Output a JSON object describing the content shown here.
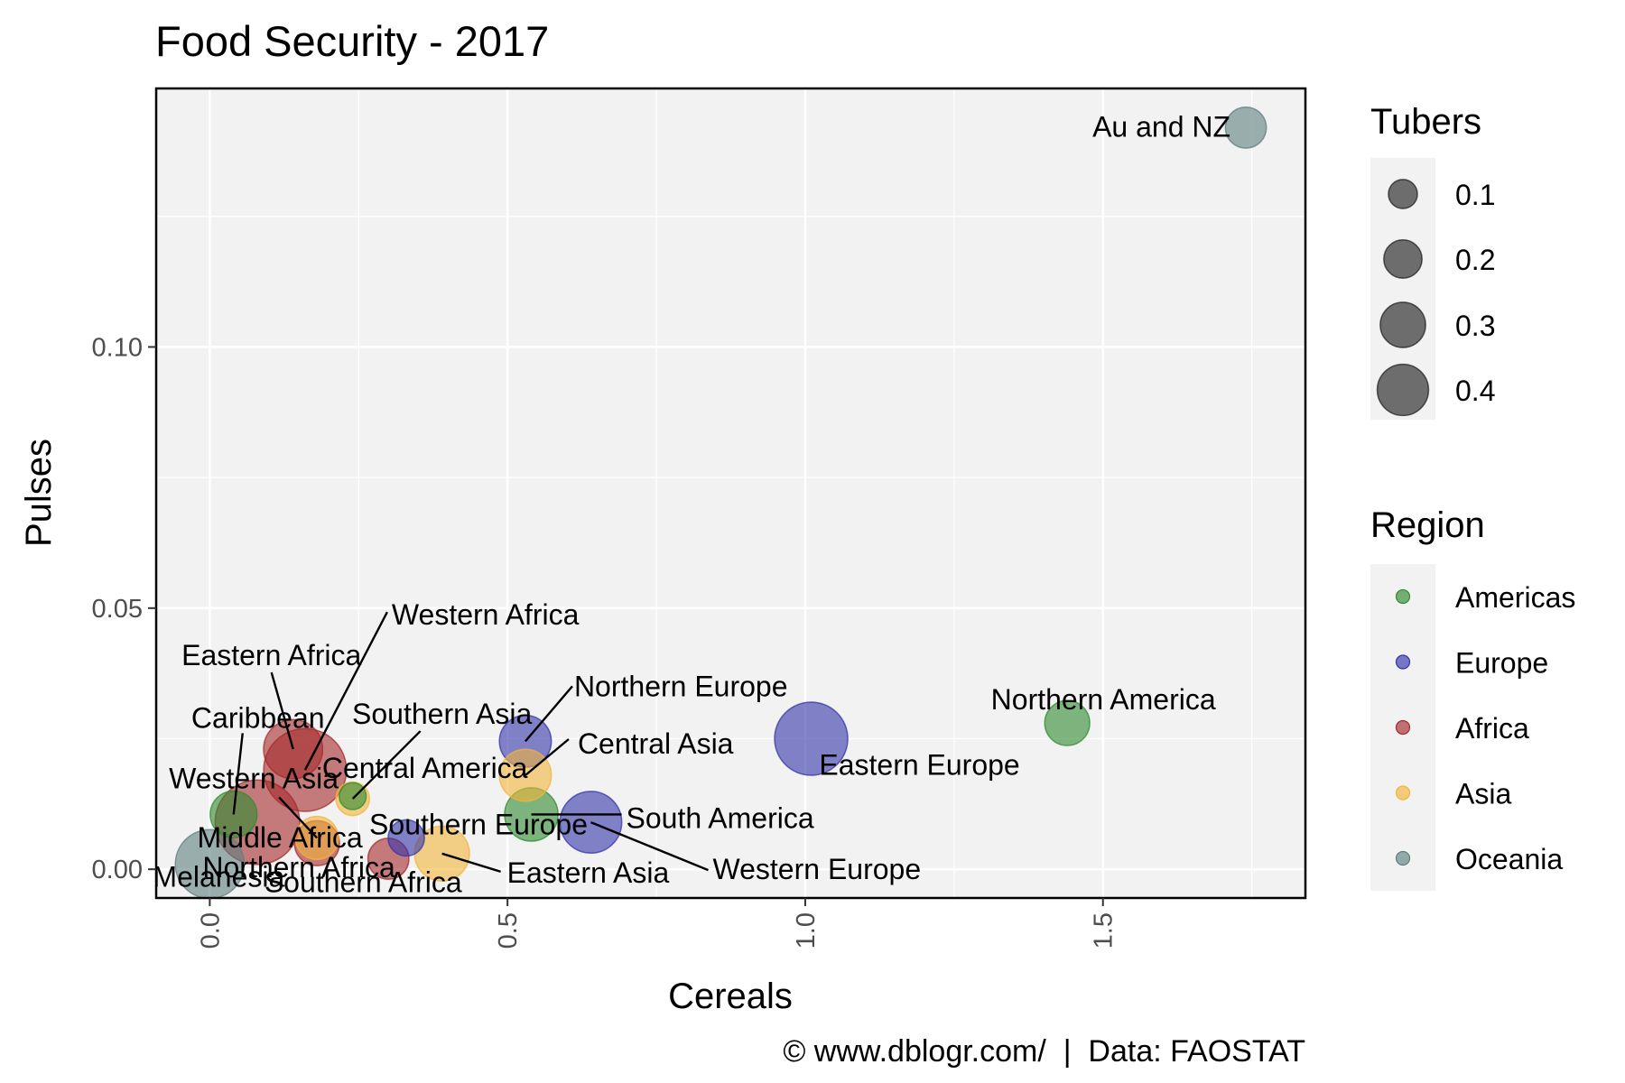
{
  "chart_data": {
    "type": "scatter",
    "title": "Food Security - 2017",
    "xlabel": "Cereals",
    "ylabel": "Pulses",
    "xlim": [
      -0.09,
      1.84
    ],
    "ylim": [
      -0.0055,
      0.1495
    ],
    "x_ticks": [
      0.0,
      0.5,
      1.0,
      1.5
    ],
    "x_tick_labels": [
      "0.0",
      "0.5",
      "1.0",
      "1.5"
    ],
    "y_ticks": [
      0.0,
      0.05,
      0.1
    ],
    "y_tick_labels": [
      "0.00",
      "0.05",
      "0.10"
    ],
    "grid": true,
    "legend_position": "right",
    "caption": "© www.dblogr.com/  |  Data: FAOSTAT",
    "size_legend": {
      "title": "Tubers",
      "values": [
        0.1,
        0.2,
        0.3,
        0.4
      ],
      "labels": [
        "0.1",
        "0.2",
        "0.3",
        "0.4"
      ]
    },
    "color_legend": {
      "title": "Region",
      "entries": [
        {
          "name": "Americas",
          "color": "#2e8b2e"
        },
        {
          "name": "Europe",
          "color": "#3333aa"
        },
        {
          "name": "Africa",
          "color": "#a52a2a"
        },
        {
          "name": "Asia",
          "color": "#f2b43a"
        },
        {
          "name": "Oceania",
          "color": "#5f7f7f"
        }
      ]
    },
    "points": [
      {
        "label": "Au and NZ",
        "region": "Oceania",
        "x": 1.74,
        "y": 0.142,
        "size": 0.07
      },
      {
        "label": "Northern America",
        "region": "Americas",
        "x": 1.44,
        "y": 0.028,
        "size": 0.09
      },
      {
        "label": "Eastern Europe",
        "region": "Europe",
        "x": 1.01,
        "y": 0.025,
        "size": 0.3
      },
      {
        "label": "Northern Europe",
        "region": "Europe",
        "x": 0.53,
        "y": 0.0245,
        "size": 0.13
      },
      {
        "label": "Central Asia",
        "region": "Asia",
        "x": 0.53,
        "y": 0.018,
        "size": 0.13
      },
      {
        "label": "South America",
        "region": "Americas",
        "x": 0.54,
        "y": 0.0105,
        "size": 0.14
      },
      {
        "label": "Western Europe",
        "region": "Europe",
        "x": 0.64,
        "y": 0.009,
        "size": 0.2
      },
      {
        "label": "Southern Europe",
        "region": "Europe",
        "x": 0.33,
        "y": 0.006,
        "size": 0.05
      },
      {
        "label": "Eastern Asia",
        "region": "Asia",
        "x": 0.39,
        "y": 0.003,
        "size": 0.15
      },
      {
        "label": "Southern Africa",
        "region": "Africa",
        "x": 0.3,
        "y": 0.002,
        "size": 0.07
      },
      {
        "label": "Eastern Africa",
        "region": "Africa",
        "x": 0.14,
        "y": 0.023,
        "size": 0.18
      },
      {
        "label": "Western Africa",
        "region": "Africa",
        "x": 0.16,
        "y": 0.019,
        "size": 0.4
      },
      {
        "label": "Southern Asia",
        "region": "Asia",
        "x": 0.24,
        "y": 0.0135,
        "size": 0.04
      },
      {
        "label": "Central America",
        "region": "Americas",
        "x": 0.24,
        "y": 0.014,
        "size": 0.02
      },
      {
        "label": "Caribbean",
        "region": "Americas",
        "x": 0.04,
        "y": 0.0105,
        "size": 0.1
      },
      {
        "label": "Middle Africa",
        "region": "Africa",
        "x": 0.08,
        "y": 0.009,
        "size": 0.42
      },
      {
        "label": "Western Asia",
        "region": "Asia",
        "x": 0.18,
        "y": 0.006,
        "size": 0.08
      },
      {
        "label": "Melanesia",
        "region": "Oceania",
        "x": 0.0,
        "y": 0.001,
        "size": 0.26
      },
      {
        "label": "Northern Africa",
        "region": "Africa",
        "x": 0.18,
        "y": 0.005,
        "size": 0.09
      }
    ]
  }
}
